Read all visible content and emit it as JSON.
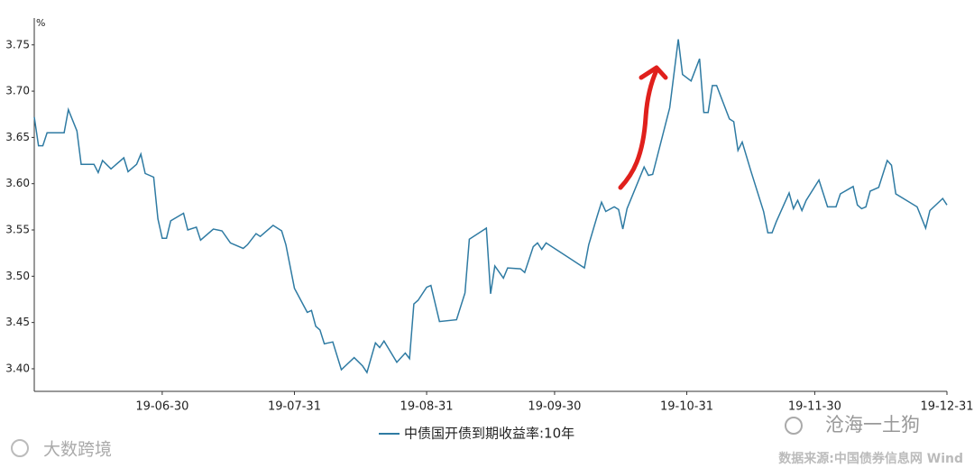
{
  "chart_data": {
    "type": "line",
    "y_label": "%",
    "x": [
      "19-05-31",
      "19-06-01",
      "19-06-02",
      "19-06-03",
      "19-06-07",
      "19-06-08",
      "19-06-10",
      "19-06-11",
      "19-06-14",
      "19-06-15",
      "19-06-16",
      "19-06-18",
      "19-06-21",
      "19-06-22",
      "19-06-24",
      "19-06-25",
      "19-06-26",
      "19-06-28",
      "19-06-29",
      "19-06-30",
      "19-07-01",
      "19-07-02",
      "19-07-05",
      "19-07-06",
      "19-07-08",
      "19-07-09",
      "19-07-12",
      "19-07-14",
      "19-07-16",
      "19-07-19",
      "19-07-20",
      "19-07-22",
      "19-07-23",
      "19-07-26",
      "19-07-28",
      "19-07-29",
      "19-07-31",
      "19-08-03",
      "19-08-04",
      "19-08-05",
      "19-08-06",
      "19-08-07",
      "19-08-09",
      "19-08-11",
      "19-08-14",
      "19-08-16",
      "19-08-17",
      "19-08-18",
      "19-08-19",
      "19-08-20",
      "19-08-21",
      "19-08-24",
      "19-08-26",
      "19-08-27",
      "19-08-28",
      "19-08-29",
      "19-08-31",
      "19-09-01",
      "19-09-03",
      "19-09-07",
      "19-09-09",
      "19-09-10",
      "19-09-14",
      "19-09-15",
      "19-09-16",
      "19-09-18",
      "19-09-19",
      "19-09-22",
      "19-09-23",
      "19-09-25",
      "19-09-26",
      "19-09-27",
      "19-09-28",
      "19-10-07",
      "19-10-08",
      "19-10-10",
      "19-10-11",
      "19-10-12",
      "19-10-14",
      "19-10-15",
      "19-10-16",
      "19-10-17",
      "19-10-21",
      "19-10-22",
      "19-10-23",
      "19-10-27",
      "19-10-29",
      "19-10-30",
      "19-11-01",
      "19-11-03",
      "19-11-04",
      "19-11-05",
      "19-11-06",
      "19-11-07",
      "19-11-10",
      "19-11-11",
      "19-11-12",
      "19-11-13",
      "19-11-15",
      "19-11-18",
      "19-11-19",
      "19-11-20",
      "19-11-21",
      "19-11-24",
      "19-11-25",
      "19-11-26",
      "19-11-27",
      "19-11-28",
      "19-12-01",
      "19-12-03",
      "19-12-05",
      "19-12-06",
      "19-12-09",
      "19-12-10",
      "19-12-11",
      "19-12-12",
      "19-12-13",
      "19-12-15",
      "19-12-17",
      "19-12-18",
      "19-12-19",
      "19-12-24",
      "19-12-26",
      "19-12-27",
      "19-12-30",
      "19-12-31"
    ],
    "series": [
      {
        "name": "中债国开债到期收益率:10年",
        "color": "#2f7ba3",
        "values": [
          3.672,
          3.641,
          3.641,
          3.655,
          3.655,
          3.68,
          3.657,
          3.621,
          3.621,
          3.612,
          3.625,
          3.616,
          3.628,
          3.613,
          3.621,
          3.632,
          3.611,
          3.607,
          3.562,
          3.541,
          3.541,
          3.56,
          3.568,
          3.55,
          3.553,
          3.539,
          3.551,
          3.549,
          3.536,
          3.53,
          3.534,
          3.546,
          3.543,
          3.555,
          3.549,
          3.534,
          3.487,
          3.461,
          3.463,
          3.446,
          3.442,
          3.427,
          3.429,
          3.399,
          3.412,
          3.403,
          3.396,
          3.412,
          3.428,
          3.423,
          3.43,
          3.407,
          3.417,
          3.411,
          3.47,
          3.474,
          3.488,
          3.49,
          3.451,
          3.453,
          3.482,
          3.54,
          3.552,
          3.481,
          3.511,
          3.498,
          3.509,
          3.508,
          3.504,
          3.532,
          3.536,
          3.529,
          3.536,
          3.509,
          3.534,
          3.565,
          3.58,
          3.57,
          3.575,
          3.572,
          3.551,
          3.573,
          3.618,
          3.609,
          3.61,
          3.682,
          3.756,
          3.718,
          3.711,
          3.735,
          3.677,
          3.677,
          3.706,
          3.706,
          3.67,
          3.667,
          3.636,
          3.645,
          3.614,
          3.57,
          3.547,
          3.547,
          3.559,
          3.59,
          3.573,
          3.582,
          3.571,
          3.582,
          3.604,
          3.575,
          3.575,
          3.589,
          3.597,
          3.577,
          3.573,
          3.575,
          3.592,
          3.596,
          3.625,
          3.62,
          3.589,
          3.575,
          3.552,
          3.571,
          3.584,
          3.577
        ]
      }
    ],
    "xlim": [
      "19-05-31",
      "19-12-31"
    ],
    "xticks": [
      "19-06-30",
      "19-07-31",
      "19-08-31",
      "19-09-30",
      "19-10-31",
      "19-11-30",
      "19-12-31"
    ],
    "ylim": [
      3.3756,
      3.779
    ],
    "yticks": [
      {
        "value": 3.4,
        "label": "3.40"
      },
      3.45,
      {
        "value": 3.5,
        "label": "3.50"
      },
      3.55,
      {
        "value": 3.6,
        "label": "3.60"
      },
      3.65,
      {
        "value": 3.7,
        "label": "3.70"
      },
      3.75
    ],
    "watermarks": [
      "沧海一土狗",
      "大数跨境"
    ],
    "source": "数据来源:中国债券信息网 Wind"
  }
}
